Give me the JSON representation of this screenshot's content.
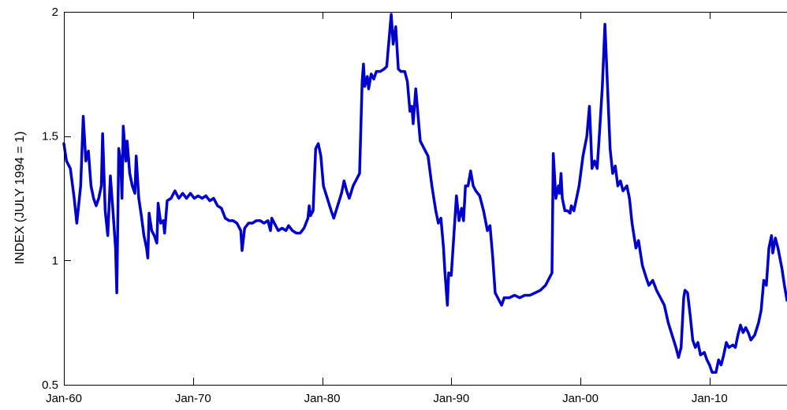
{
  "chart_data": {
    "type": "line",
    "title": "",
    "xlabel": "",
    "ylabel": "INDEX (JULY 1994 = 1)",
    "xlim": [
      1960.0,
      2016.0
    ],
    "ylim": [
      0.5,
      2.0
    ],
    "x_ticks": [
      {
        "value": 1960,
        "label": "Jan-60"
      },
      {
        "value": 1970,
        "label": "Jan-70"
      },
      {
        "value": 1980,
        "label": "Jan-80"
      },
      {
        "value": 1990,
        "label": "Jan-90"
      },
      {
        "value": 2000,
        "label": "Jan-00"
      },
      {
        "value": 2010,
        "label": "Jan-10"
      }
    ],
    "y_ticks": [
      {
        "value": 0.5,
        "label": "0.5"
      },
      {
        "value": 1.0,
        "label": "1"
      },
      {
        "value": 1.5,
        "label": "1.5"
      },
      {
        "value": 2.0,
        "label": "2"
      }
    ],
    "grid": false,
    "series": [
      {
        "color": "#0000CC",
        "points": [
          [
            1960.0,
            1.47
          ],
          [
            1960.2,
            1.4
          ],
          [
            1960.5,
            1.37
          ],
          [
            1960.8,
            1.25
          ],
          [
            1961.0,
            1.15
          ],
          [
            1961.3,
            1.3
          ],
          [
            1961.5,
            1.58
          ],
          [
            1961.7,
            1.4
          ],
          [
            1961.9,
            1.44
          ],
          [
            1962.1,
            1.3
          ],
          [
            1962.3,
            1.25
          ],
          [
            1962.5,
            1.22
          ],
          [
            1962.7,
            1.25
          ],
          [
            1962.9,
            1.3
          ],
          [
            1963.0,
            1.51
          ],
          [
            1963.2,
            1.2
          ],
          [
            1963.4,
            1.1
          ],
          [
            1963.6,
            1.34
          ],
          [
            1963.8,
            1.2
          ],
          [
            1964.0,
            1.05
          ],
          [
            1964.1,
            0.87
          ],
          [
            1964.25,
            1.45
          ],
          [
            1964.4,
            1.4
          ],
          [
            1964.5,
            1.25
          ],
          [
            1964.6,
            1.54
          ],
          [
            1964.8,
            1.4
          ],
          [
            1964.9,
            1.48
          ],
          [
            1965.1,
            1.35
          ],
          [
            1965.3,
            1.3
          ],
          [
            1965.5,
            1.27
          ],
          [
            1965.6,
            1.42
          ],
          [
            1965.8,
            1.25
          ],
          [
            1966.0,
            1.18
          ],
          [
            1966.2,
            1.1
          ],
          [
            1966.4,
            1.05
          ],
          [
            1966.5,
            1.01
          ],
          [
            1966.6,
            1.19
          ],
          [
            1966.8,
            1.12
          ],
          [
            1967.0,
            1.1
          ],
          [
            1967.2,
            1.07
          ],
          [
            1967.3,
            1.23
          ],
          [
            1967.5,
            1.15
          ],
          [
            1967.7,
            1.16
          ],
          [
            1967.8,
            1.11
          ],
          [
            1968.0,
            1.24
          ],
          [
            1968.3,
            1.25
          ],
          [
            1968.6,
            1.28
          ],
          [
            1968.9,
            1.25
          ],
          [
            1969.2,
            1.27
          ],
          [
            1969.5,
            1.25
          ],
          [
            1969.8,
            1.27
          ],
          [
            1970.1,
            1.25
          ],
          [
            1970.4,
            1.26
          ],
          [
            1970.7,
            1.25
          ],
          [
            1971.0,
            1.26
          ],
          [
            1971.3,
            1.24
          ],
          [
            1971.6,
            1.25
          ],
          [
            1971.9,
            1.22
          ],
          [
            1972.2,
            1.21
          ],
          [
            1972.5,
            1.17
          ],
          [
            1972.8,
            1.16
          ],
          [
            1973.1,
            1.16
          ],
          [
            1973.4,
            1.15
          ],
          [
            1973.7,
            1.12
          ],
          [
            1973.8,
            1.04
          ],
          [
            1974.0,
            1.13
          ],
          [
            1974.3,
            1.15
          ],
          [
            1974.6,
            1.15
          ],
          [
            1974.9,
            1.16
          ],
          [
            1975.2,
            1.16
          ],
          [
            1975.5,
            1.15
          ],
          [
            1975.8,
            1.16
          ],
          [
            1976.0,
            1.12
          ],
          [
            1976.1,
            1.17
          ],
          [
            1976.4,
            1.14
          ],
          [
            1976.6,
            1.12
          ],
          [
            1976.9,
            1.13
          ],
          [
            1977.2,
            1.12
          ],
          [
            1977.4,
            1.14
          ],
          [
            1977.7,
            1.12
          ],
          [
            1978.0,
            1.11
          ],
          [
            1978.3,
            1.11
          ],
          [
            1978.6,
            1.13
          ],
          [
            1978.9,
            1.17
          ],
          [
            1979.0,
            1.22
          ],
          [
            1979.1,
            1.18
          ],
          [
            1979.3,
            1.2
          ],
          [
            1979.5,
            1.45
          ],
          [
            1979.7,
            1.47
          ],
          [
            1979.9,
            1.42
          ],
          [
            1980.1,
            1.3
          ],
          [
            1980.4,
            1.25
          ],
          [
            1980.7,
            1.2
          ],
          [
            1980.9,
            1.17
          ],
          [
            1981.2,
            1.22
          ],
          [
            1981.5,
            1.27
          ],
          [
            1981.7,
            1.32
          ],
          [
            1981.9,
            1.28
          ],
          [
            1982.1,
            1.25
          ],
          [
            1982.4,
            1.3
          ],
          [
            1982.6,
            1.32
          ],
          [
            1982.9,
            1.35
          ],
          [
            1983.1,
            1.72
          ],
          [
            1983.2,
            1.79
          ],
          [
            1983.3,
            1.7
          ],
          [
            1983.5,
            1.74
          ],
          [
            1983.6,
            1.69
          ],
          [
            1983.8,
            1.75
          ],
          [
            1984.0,
            1.73
          ],
          [
            1984.2,
            1.76
          ],
          [
            1984.5,
            1.76
          ],
          [
            1984.8,
            1.77
          ],
          [
            1985.0,
            1.78
          ],
          [
            1985.2,
            1.9
          ],
          [
            1985.35,
            1.99
          ],
          [
            1985.5,
            1.87
          ],
          [
            1985.7,
            1.94
          ],
          [
            1985.9,
            1.77
          ],
          [
            1986.1,
            1.76
          ],
          [
            1986.4,
            1.76
          ],
          [
            1986.6,
            1.72
          ],
          [
            1986.8,
            1.6
          ],
          [
            1986.95,
            1.62
          ],
          [
            1987.05,
            1.55
          ],
          [
            1987.25,
            1.69
          ],
          [
            1987.4,
            1.6
          ],
          [
            1987.6,
            1.48
          ],
          [
            1987.9,
            1.45
          ],
          [
            1988.2,
            1.42
          ],
          [
            1988.5,
            1.3
          ],
          [
            1988.8,
            1.2
          ],
          [
            1989.0,
            1.15
          ],
          [
            1989.2,
            1.17
          ],
          [
            1989.4,
            1.05
          ],
          [
            1989.5,
            0.96
          ],
          [
            1989.7,
            0.82
          ],
          [
            1989.8,
            0.95
          ],
          [
            1990.0,
            0.94
          ],
          [
            1990.2,
            1.1
          ],
          [
            1990.4,
            1.26
          ],
          [
            1990.6,
            1.16
          ],
          [
            1990.8,
            1.21
          ],
          [
            1990.95,
            1.16
          ],
          [
            1991.1,
            1.3
          ],
          [
            1991.3,
            1.3
          ],
          [
            1991.5,
            1.36
          ],
          [
            1991.7,
            1.3
          ],
          [
            1991.9,
            1.28
          ],
          [
            1992.2,
            1.26
          ],
          [
            1992.5,
            1.2
          ],
          [
            1992.8,
            1.12
          ],
          [
            1993.0,
            1.14
          ],
          [
            1993.2,
            1.02
          ],
          [
            1993.4,
            0.87
          ],
          [
            1993.6,
            0.85
          ],
          [
            1993.9,
            0.82
          ],
          [
            1994.1,
            0.85
          ],
          [
            1994.5,
            0.85
          ],
          [
            1994.9,
            0.86
          ],
          [
            1995.3,
            0.85
          ],
          [
            1995.7,
            0.86
          ],
          [
            1996.1,
            0.86
          ],
          [
            1996.5,
            0.87
          ],
          [
            1996.9,
            0.88
          ],
          [
            1997.3,
            0.9
          ],
          [
            1997.7,
            0.94
          ],
          [
            1997.8,
            0.95
          ],
          [
            1997.9,
            1.43
          ],
          [
            1998.1,
            1.25
          ],
          [
            1998.3,
            1.3
          ],
          [
            1998.4,
            1.27
          ],
          [
            1998.5,
            1.35
          ],
          [
            1998.6,
            1.25
          ],
          [
            1998.8,
            1.2
          ],
          [
            1999.0,
            1.2
          ],
          [
            1999.2,
            1.19
          ],
          [
            1999.3,
            1.22
          ],
          [
            1999.5,
            1.2
          ],
          [
            1999.7,
            1.25
          ],
          [
            1999.9,
            1.3
          ],
          [
            2000.2,
            1.42
          ],
          [
            2000.5,
            1.5
          ],
          [
            2000.7,
            1.62
          ],
          [
            2000.8,
            1.5
          ],
          [
            2000.9,
            1.37
          ],
          [
            2001.1,
            1.4
          ],
          [
            2001.3,
            1.37
          ],
          [
            2001.5,
            1.53
          ],
          [
            2001.7,
            1.7
          ],
          [
            2001.9,
            1.95
          ],
          [
            2002.1,
            1.7
          ],
          [
            2002.3,
            1.45
          ],
          [
            2002.5,
            1.35
          ],
          [
            2002.7,
            1.38
          ],
          [
            2002.9,
            1.3
          ],
          [
            2003.1,
            1.32
          ],
          [
            2003.3,
            1.28
          ],
          [
            2003.6,
            1.3
          ],
          [
            2003.8,
            1.25
          ],
          [
            2004.0,
            1.15
          ],
          [
            2004.3,
            1.05
          ],
          [
            2004.5,
            1.08
          ],
          [
            2004.8,
            0.98
          ],
          [
            2005.1,
            0.93
          ],
          [
            2005.3,
            0.9
          ],
          [
            2005.6,
            0.92
          ],
          [
            2005.9,
            0.88
          ],
          [
            2006.2,
            0.85
          ],
          [
            2006.5,
            0.82
          ],
          [
            2006.8,
            0.75
          ],
          [
            2007.1,
            0.7
          ],
          [
            2007.4,
            0.65
          ],
          [
            2007.6,
            0.61
          ],
          [
            2007.8,
            0.65
          ],
          [
            2008.0,
            0.85
          ],
          [
            2008.1,
            0.88
          ],
          [
            2008.3,
            0.87
          ],
          [
            2008.5,
            0.78
          ],
          [
            2008.7,
            0.68
          ],
          [
            2008.9,
            0.65
          ],
          [
            2009.1,
            0.67
          ],
          [
            2009.3,
            0.62
          ],
          [
            2009.6,
            0.63
          ],
          [
            2009.8,
            0.6
          ],
          [
            2010.0,
            0.58
          ],
          [
            2010.2,
            0.55
          ],
          [
            2010.5,
            0.55
          ],
          [
            2010.7,
            0.6
          ],
          [
            2010.9,
            0.58
          ],
          [
            2011.1,
            0.62
          ],
          [
            2011.3,
            0.67
          ],
          [
            2011.5,
            0.65
          ],
          [
            2011.8,
            0.66
          ],
          [
            2012.0,
            0.65
          ],
          [
            2012.2,
            0.7
          ],
          [
            2012.4,
            0.74
          ],
          [
            2012.6,
            0.71
          ],
          [
            2012.8,
            0.73
          ],
          [
            2013.0,
            0.71
          ],
          [
            2013.2,
            0.68
          ],
          [
            2013.5,
            0.7
          ],
          [
            2013.8,
            0.75
          ],
          [
            2014.0,
            0.8
          ],
          [
            2014.2,
            0.92
          ],
          [
            2014.4,
            0.9
          ],
          [
            2014.6,
            1.05
          ],
          [
            2014.8,
            1.1
          ],
          [
            2014.9,
            1.03
          ],
          [
            2015.1,
            1.09
          ],
          [
            2015.3,
            1.05
          ],
          [
            2015.6,
            0.97
          ],
          [
            2015.8,
            0.9
          ],
          [
            2016.0,
            0.84
          ]
        ]
      }
    ]
  }
}
